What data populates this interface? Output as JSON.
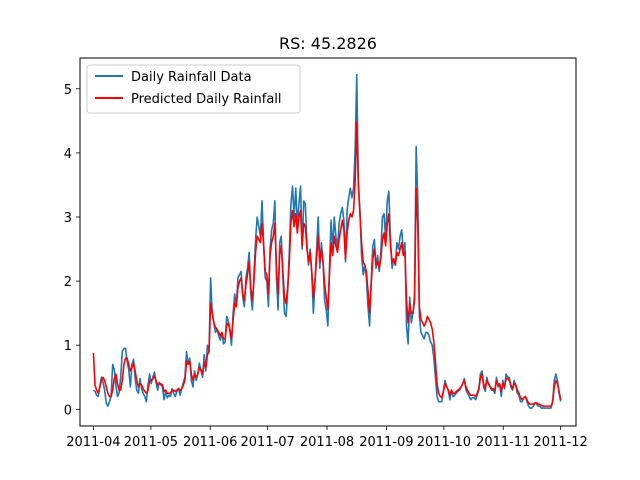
{
  "chart_data": {
    "type": "line",
    "title": "RS: 45.2826",
    "xlabel": "",
    "ylabel": "",
    "x_start": "2011-04-01",
    "x_end": "2011-12-01",
    "xlim": [
      "2011-03-25",
      "2011-12-09"
    ],
    "ylim": [
      -0.26,
      5.48
    ],
    "x_ticks": [
      "2011-04",
      "2011-05",
      "2011-06",
      "2011-07",
      "2011-08",
      "2011-09",
      "2011-10",
      "2011-11",
      "2011-12"
    ],
    "y_ticks": [
      0,
      1,
      2,
      3,
      4,
      5
    ],
    "legend_position": "top-left",
    "grid": false,
    "series": [
      {
        "name": "Daily Rainfall Data",
        "color": "#1f77b4",
        "values": [
          0.3,
          0.28,
          0.22,
          0.2,
          0.35,
          0.5,
          0.42,
          0.3,
          0.1,
          0.05,
          0.12,
          0.2,
          0.7,
          0.62,
          0.38,
          0.2,
          0.26,
          0.5,
          0.9,
          0.95,
          0.95,
          0.75,
          0.62,
          0.35,
          0.7,
          0.78,
          0.48,
          0.3,
          0.25,
          0.48,
          0.32,
          0.25,
          0.2,
          0.12,
          0.38,
          0.55,
          0.4,
          0.5,
          0.58,
          0.42,
          0.3,
          0.42,
          0.38,
          0.35,
          0.15,
          0.28,
          0.18,
          0.22,
          0.2,
          0.32,
          0.25,
          0.2,
          0.28,
          0.33,
          0.22,
          0.32,
          0.42,
          0.5,
          0.9,
          0.7,
          0.8,
          0.45,
          0.35,
          0.6,
          0.45,
          0.55,
          0.72,
          0.6,
          0.5,
          0.85,
          0.6,
          1.0,
          0.9,
          2.05,
          1.5,
          1.35,
          1.2,
          1.25,
          1.15,
          1.08,
          1.2,
          1.02,
          1.05,
          1.45,
          1.38,
          1.22,
          1.0,
          1.5,
          1.8,
          1.6,
          2.05,
          2.1,
          2.15,
          1.75,
          1.6,
          2.05,
          2.2,
          2.45,
          1.8,
          1.55,
          2.1,
          2.65,
          3.0,
          2.85,
          2.7,
          3.25,
          2.6,
          2.05,
          2.0,
          1.6,
          2.5,
          2.8,
          2.9,
          3.25,
          2.05,
          1.55,
          2.6,
          2.7,
          2.05,
          1.5,
          1.45,
          1.85,
          2.45,
          3.2,
          3.48,
          3.0,
          3.45,
          2.9,
          3.2,
          3.48,
          2.5,
          3.25,
          3.2,
          2.55,
          2.25,
          2.5,
          2.1,
          1.5,
          2.0,
          2.5,
          3.0,
          2.2,
          2.6,
          2.3,
          1.7,
          1.55,
          1.3,
          2.2,
          2.95,
          2.5,
          3.0,
          2.7,
          2.5,
          2.9,
          3.05,
          3.15,
          2.95,
          2.3,
          3.1,
          3.3,
          3.45,
          3.3,
          3.45,
          4.05,
          5.22,
          3.5,
          3.1,
          2.4,
          2.1,
          2.25,
          2.05,
          1.6,
          1.3,
          2.0,
          2.55,
          2.65,
          2.2,
          2.4,
          2.15,
          2.45,
          3.0,
          3.05,
          2.65,
          3.25,
          3.4,
          2.65,
          2.2,
          2.35,
          2.25,
          2.6,
          2.5,
          2.7,
          2.8,
          2.45,
          2.6,
          1.3,
          1.02,
          1.75,
          1.35,
          1.5,
          1.8,
          4.1,
          3.3,
          1.45,
          1.2,
          1.15,
          1.1,
          1.2,
          1.2,
          1.15,
          1.05,
          1.0,
          0.8,
          0.5,
          0.2,
          0.12,
          0.12,
          0.12,
          0.3,
          0.45,
          0.35,
          0.3,
          0.15,
          0.3,
          0.2,
          0.22,
          0.25,
          0.28,
          0.3,
          0.35,
          0.4,
          0.48,
          0.3,
          0.25,
          0.2,
          0.15,
          0.18,
          0.18,
          0.15,
          0.22,
          0.3,
          0.55,
          0.6,
          0.35,
          0.28,
          0.5,
          0.4,
          0.35,
          0.3,
          0.3,
          0.25,
          0.5,
          0.35,
          0.4,
          0.2,
          0.45,
          0.32,
          0.55,
          0.5,
          0.5,
          0.35,
          0.3,
          0.45,
          0.38,
          0.25,
          0.22,
          0.12,
          0.12,
          0.18,
          0.2,
          0.12,
          0.05,
          0.02,
          0.02,
          0.05,
          0.1,
          0.08,
          0.05,
          0.05,
          0.02,
          0.02,
          0.02,
          0.02,
          0.02,
          0.02,
          0.02,
          0.12,
          0.45,
          0.55,
          0.45,
          0.25,
          0.12
        ]
      },
      {
        "name": "Predicted Daily Rainfall",
        "color": "#ff0000",
        "values": [
          0.88,
          0.38,
          0.3,
          0.25,
          0.35,
          0.45,
          0.5,
          0.45,
          0.35,
          0.25,
          0.2,
          0.2,
          0.3,
          0.48,
          0.55,
          0.4,
          0.3,
          0.3,
          0.45,
          0.7,
          0.8,
          0.8,
          0.7,
          0.6,
          0.65,
          0.72,
          0.6,
          0.45,
          0.35,
          0.4,
          0.38,
          0.32,
          0.28,
          0.25,
          0.3,
          0.45,
          0.45,
          0.48,
          0.52,
          0.45,
          0.38,
          0.4,
          0.4,
          0.38,
          0.28,
          0.3,
          0.25,
          0.25,
          0.25,
          0.3,
          0.3,
          0.28,
          0.3,
          0.32,
          0.3,
          0.32,
          0.38,
          0.45,
          0.75,
          0.7,
          0.75,
          0.55,
          0.45,
          0.55,
          0.5,
          0.55,
          0.65,
          0.62,
          0.55,
          0.72,
          0.65,
          0.85,
          0.9,
          1.65,
          1.5,
          1.35,
          1.28,
          1.25,
          1.2,
          1.15,
          1.2,
          1.1,
          1.1,
          1.3,
          1.35,
          1.25,
          1.1,
          1.4,
          1.65,
          1.6,
          1.9,
          2.0,
          2.05,
          1.8,
          1.7,
          1.95,
          2.1,
          2.3,
          1.9,
          1.7,
          2.0,
          2.45,
          2.7,
          2.65,
          2.6,
          2.9,
          2.55,
          2.15,
          2.1,
          1.8,
          2.4,
          2.6,
          2.7,
          2.9,
          2.2,
          1.8,
          2.4,
          2.55,
          2.15,
          1.75,
          1.65,
          1.9,
          2.3,
          2.9,
          3.1,
          2.85,
          3.05,
          2.75,
          3.0,
          3.1,
          2.55,
          2.9,
          2.85,
          2.5,
          2.3,
          2.45,
          2.15,
          1.75,
          2.0,
          2.35,
          2.7,
          2.3,
          2.5,
          2.3,
          1.95,
          1.75,
          1.55,
          2.1,
          2.6,
          2.4,
          2.7,
          2.55,
          2.45,
          2.65,
          2.8,
          2.95,
          2.8,
          2.35,
          2.75,
          2.95,
          3.05,
          3.0,
          3.1,
          3.55,
          4.48,
          3.5,
          3.05,
          2.6,
          2.3,
          2.25,
          2.15,
          1.85,
          1.5,
          1.95,
          2.35,
          2.5,
          2.25,
          2.3,
          2.2,
          2.35,
          2.65,
          2.75,
          2.55,
          2.9,
          3.05,
          2.55,
          2.3,
          2.35,
          2.25,
          2.45,
          2.4,
          2.5,
          2.6,
          2.4,
          2.45,
          1.7,
          1.35,
          1.65,
          1.5,
          1.5,
          1.7,
          3.45,
          2.9,
          1.6,
          1.4,
          1.35,
          1.3,
          1.35,
          1.45,
          1.4,
          1.35,
          1.25,
          1.05,
          0.75,
          0.4,
          0.25,
          0.2,
          0.18,
          0.28,
          0.4,
          0.35,
          0.3,
          0.22,
          0.3,
          0.25,
          0.25,
          0.28,
          0.3,
          0.32,
          0.35,
          0.4,
          0.45,
          0.35,
          0.3,
          0.25,
          0.22,
          0.22,
          0.22,
          0.2,
          0.25,
          0.32,
          0.48,
          0.55,
          0.4,
          0.32,
          0.45,
          0.4,
          0.36,
          0.32,
          0.32,
          0.3,
          0.45,
          0.38,
          0.4,
          0.28,
          0.4,
          0.35,
          0.48,
          0.48,
          0.45,
          0.38,
          0.32,
          0.4,
          0.38,
          0.3,
          0.25,
          0.18,
          0.15,
          0.18,
          0.2,
          0.15,
          0.1,
          0.08,
          0.08,
          0.08,
          0.1,
          0.1,
          0.08,
          0.08,
          0.06,
          0.05,
          0.05,
          0.05,
          0.05,
          0.05,
          0.05,
          0.12,
          0.35,
          0.45,
          0.4,
          0.28,
          0.15
        ]
      }
    ]
  }
}
